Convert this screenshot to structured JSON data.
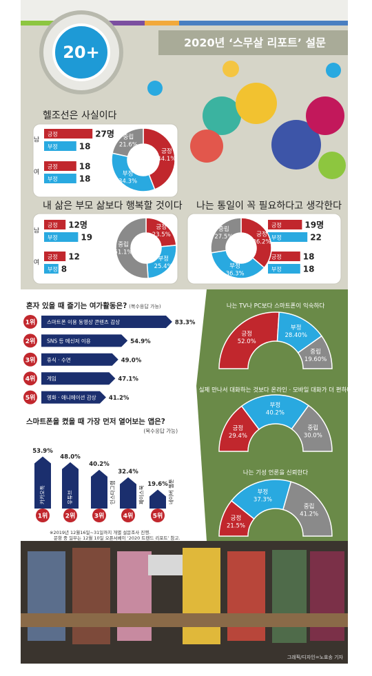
{
  "header": {
    "badge": "20+",
    "title": "2020년 ‘스무살 리포트’ 설문"
  },
  "chart_data": [
    {
      "type": "bar",
      "orientation": "horizontal",
      "title": "헬조선은 사실이다",
      "categories": [
        "남",
        "여"
      ],
      "series": [
        {
          "name": "긍정",
          "color": "#c1272d",
          "values": [
            27,
            18
          ],
          "value_labels": [
            "27명",
            "18"
          ]
        },
        {
          "name": "부정",
          "color": "#29a9e0",
          "values": [
            18,
            18
          ]
        }
      ]
    },
    {
      "type": "pie",
      "donut": true,
      "categories": [
        "긍정",
        "부정",
        "중립"
      ],
      "colors": [
        "#c1272d",
        "#29a9e0",
        "#8a8a8a"
      ],
      "values": [
        44.1,
        34.3,
        21.6
      ],
      "value_labels": [
        "44.1%",
        "34.3%",
        "21.6%"
      ]
    },
    {
      "type": "bar",
      "orientation": "horizontal",
      "title": "내 삶은 부모 삶보다 행복할 것이다",
      "categories": [
        "남",
        "여"
      ],
      "series": [
        {
          "name": "긍정",
          "color": "#c1272d",
          "values": [
            12,
            12
          ],
          "value_labels": [
            "12명",
            "12"
          ]
        },
        {
          "name": "부정",
          "color": "#29a9e0",
          "values": [
            19,
            8
          ]
        }
      ]
    },
    {
      "type": "pie",
      "donut": true,
      "categories": [
        "긍정",
        "부정",
        "중립"
      ],
      "colors": [
        "#c1272d",
        "#29a9e0",
        "#8a8a8a"
      ],
      "values": [
        23.5,
        25.4,
        51.1
      ],
      "value_labels": [
        "23.5%",
        "25.4%",
        "51.1%"
      ]
    },
    {
      "type": "bar",
      "orientation": "horizontal",
      "title": "나는 통일이 꼭 필요하다고 생각한다",
      "categories": [
        "남",
        "여"
      ],
      "series": [
        {
          "name": "긍정",
          "color": "#c1272d",
          "values": [
            19,
            18
          ],
          "value_labels": [
            "19명",
            "18"
          ]
        },
        {
          "name": "부정",
          "color": "#29a9e0",
          "values": [
            22,
            18
          ]
        }
      ]
    },
    {
      "type": "pie",
      "donut": true,
      "categories": [
        "긍정",
        "부정",
        "중립"
      ],
      "colors": [
        "#c1272d",
        "#29a9e0",
        "#8a8a8a"
      ],
      "values": [
        36.2,
        36.3,
        27.5
      ],
      "value_labels": [
        "36.2%",
        "36.3%",
        "27.5%"
      ]
    },
    {
      "type": "bar",
      "orientation": "horizontal",
      "title": "혼자 있을 때 즐기는 여가활동은?",
      "subtitle": "(복수응답 가능)",
      "color": "#1b2f6e",
      "ranks": [
        "1위",
        "2위",
        "3위",
        "4위",
        "5위"
      ],
      "categories": [
        "스마트폰 이용 동영상 콘텐츠 감상",
        "SNS 등 메신저 이용",
        "휴식 · 수면",
        "게임",
        "영화 · 애니메이션 감상"
      ],
      "values": [
        83.3,
        54.9,
        49,
        47.1,
        41.2
      ],
      "value_labels": [
        "83.3%",
        "54.9%",
        "49.0%",
        "47.1%",
        "41.2%"
      ]
    },
    {
      "type": "bar",
      "orientation": "vertical",
      "title": "스마트폰을 켰을 때 가장 먼저 열어보는 앱은?",
      "subtitle": "(복수응답 가능)",
      "color": "#1b2f6e",
      "ranks": [
        "1위",
        "2위",
        "3위",
        "4위",
        "5위"
      ],
      "categories": [
        "카카오톡",
        "유튜브",
        "인스타그램",
        "페이스북",
        "네이버 웹툰"
      ],
      "values": [
        53.9,
        48,
        40.2,
        32.4,
        19.6
      ],
      "value_labels": [
        "53.9%",
        "48.0%",
        "40.2%",
        "32.4%",
        "19.6%"
      ]
    },
    {
      "type": "pie",
      "semicircle": true,
      "title": "나는 TV나 PC보다 스마트폰이 익숙하다",
      "categories": [
        "긍정",
        "부정",
        "중립"
      ],
      "colors": [
        "#c1272d",
        "#29a9e0",
        "#8a8a8a"
      ],
      "values": [
        52,
        28.4,
        19.6
      ],
      "value_labels": [
        "52.0%",
        "28.40%",
        "19.60%"
      ]
    },
    {
      "type": "pie",
      "semicircle": true,
      "title": "실제 만나서 대화하는 것보다 온라인 · 모바일 대화가 더 편하다",
      "categories": [
        "긍정",
        "부정",
        "중립"
      ],
      "colors": [
        "#c1272d",
        "#29a9e0",
        "#8a8a8a"
      ],
      "values": [
        29.4,
        40.2,
        30
      ],
      "value_labels": [
        "29.4%",
        "40.2%",
        "30.0%"
      ]
    },
    {
      "type": "pie",
      "semicircle": true,
      "title": "나는 기성 언론을 신뢰한다",
      "categories": [
        "긍정",
        "부정",
        "중립"
      ],
      "colors": [
        "#c1272d",
        "#29a9e0",
        "#8a8a8a"
      ],
      "values": [
        21.5,
        37.3,
        41.2
      ],
      "value_labels": [
        "21.5%",
        "37.3%",
        "41.2%"
      ]
    }
  ],
  "footnote": [
    "※2019년 12월16일~31일까지 개별 설문조사 진행.",
    "문항 중 일부는 12월 10일 오픈서베이 ‘2020 트렌드 리포트’ 참고."
  ],
  "credit": "그래픽/디자인=노효송 기자"
}
